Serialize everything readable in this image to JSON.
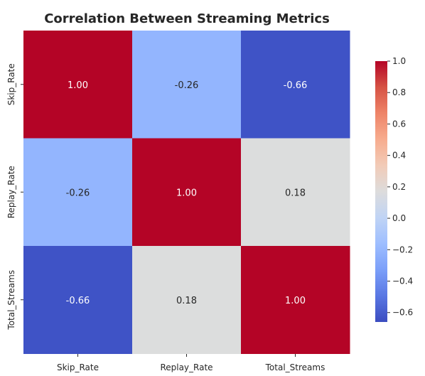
{
  "chart_data": {
    "type": "heatmap",
    "title": "Correlation Between Streaming Metrics",
    "xlabel": "",
    "ylabel": "",
    "x_categories": [
      "Skip_Rate",
      "Replay_Rate",
      "Total_Streams"
    ],
    "y_categories": [
      "Skip_Rate",
      "Replay_Rate",
      "Total_Streams"
    ],
    "values": [
      [
        1.0,
        -0.26,
        -0.66
      ],
      [
        -0.26,
        1.0,
        0.18
      ],
      [
        -0.66,
        0.18,
        1.0
      ]
    ],
    "annotations": [
      [
        "1.00",
        "-0.26",
        "-0.66"
      ],
      [
        "-0.26",
        "1.00",
        "0.18"
      ],
      [
        "-0.66",
        "0.18",
        "1.00"
      ]
    ],
    "colorscale": "coolwarm",
    "vmin": -0.66,
    "vmax": 1.0,
    "colorbar": {
      "position": "right",
      "ticks": [
        1.0,
        0.8,
        0.6,
        0.4,
        0.2,
        0.0,
        -0.2,
        -0.4,
        -0.6
      ],
      "tick_labels": [
        "1.0",
        "0.8",
        "0.6",
        "0.4",
        "0.2",
        "0.0",
        "−0.2",
        "−0.4",
        "−0.6"
      ]
    },
    "cell_colors": [
      [
        "#b40426",
        "#93b5fe",
        "#3f53c6"
      ],
      [
        "#93b5fe",
        "#b40426",
        "#dcdddd"
      ],
      [
        "#3f53c6",
        "#dcdddd",
        "#b40426"
      ]
    ],
    "grid": false
  }
}
